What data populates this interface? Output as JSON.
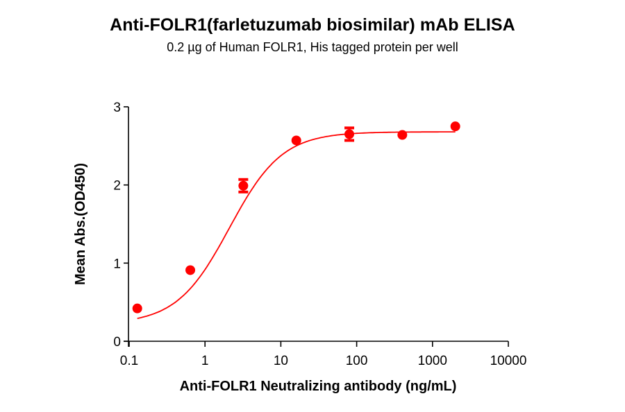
{
  "header": {
    "title": "Anti-FOLR1(farletuzumab biosimilar) mAb ELISA",
    "subtitle": "0.2 µg of Human FOLR1, His tagged protein per well"
  },
  "colors": {
    "series": "#ff0000",
    "axis": "#000000",
    "background": "#ffffff"
  },
  "chart_data": {
    "type": "scatter",
    "title": "Anti-FOLR1(farletuzumab biosimilar) mAb ELISA",
    "subtitle": "0.2 µg of Human FOLR1, His tagged protein per well",
    "xlabel": "Anti-FOLR1 Neutralizing antibody (ng/mL)",
    "ylabel": "Mean Abs.(OD450)",
    "xscale": "log",
    "xlim": [
      0.1,
      10000
    ],
    "ylim": [
      0,
      3
    ],
    "xticks": [
      "0.1",
      "1",
      "10",
      "100",
      "1000",
      "10000"
    ],
    "yticks": [
      "0",
      "1",
      "2",
      "3"
    ],
    "grid": false,
    "legend": null,
    "fit": "4-parameter logistic curve (red line)",
    "series": [
      {
        "name": "Anti-FOLR1 (farletuzumab biosimilar)",
        "color": "#ff0000",
        "x": [
          0.128,
          0.64,
          3.2,
          16,
          80,
          400,
          2000
        ],
        "y": [
          0.42,
          0.91,
          1.99,
          2.57,
          2.65,
          2.64,
          2.75
        ],
        "error": [
          0.01,
          0.01,
          0.08,
          0.02,
          0.08,
          0.01,
          0.01
        ]
      }
    ]
  }
}
